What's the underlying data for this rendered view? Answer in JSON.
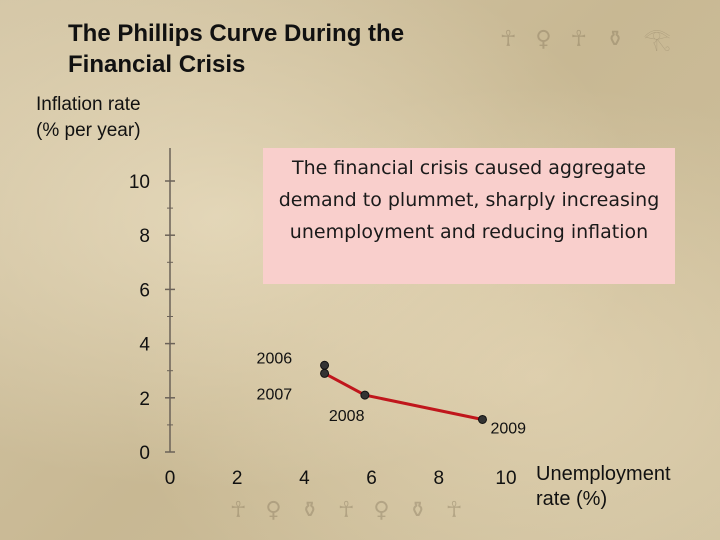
{
  "title_lines": [
    "The Phillips Curve During the",
    "Financial Crisis"
  ],
  "ylabel_lines": [
    "Inflation rate",
    "(% per year)"
  ],
  "xlabel_lines": [
    "Unemployment",
    "rate (%)"
  ],
  "annotation_text": "The financial crisis caused aggregate demand to plummet, sharply increasing unemployment and reducing inflation",
  "colors": {
    "line": "#c0161c",
    "point": "#333333",
    "annotation_bg": "#f9cfcc"
  },
  "chart_data": {
    "type": "line",
    "xlabel": "Unemployment rate (%)",
    "ylabel": "Inflation rate (% per year)",
    "xlim": [
      0,
      10
    ],
    "ylim": [
      0,
      10
    ],
    "x_ticks": [
      "0",
      "2",
      "4",
      "6",
      "8",
      "10"
    ],
    "y_ticks": [
      "0",
      "2",
      "4",
      "6",
      "8",
      "10"
    ],
    "grid": false,
    "series": [
      {
        "points": [
          {
            "label": "2006",
            "x": 4.6,
            "y": 3.2
          },
          {
            "label": "2007",
            "x": 4.6,
            "y": 2.9
          },
          {
            "label": "2008",
            "x": 5.8,
            "y": 2.1
          },
          {
            "label": "2009",
            "x": 9.3,
            "y": 1.2
          }
        ]
      }
    ]
  }
}
